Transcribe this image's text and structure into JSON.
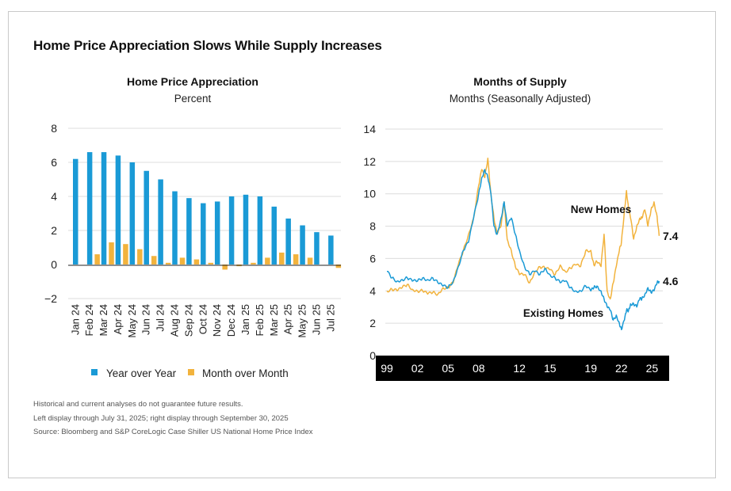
{
  "title": "Home Price Appreciation Slows While Supply Increases",
  "colors": {
    "yoy": "#1a9ad6",
    "mom": "#f2b33d",
    "existing": "#1a9ad6",
    "new": "#f2b33d",
    "axis_band": "#000000"
  },
  "chart_data": [
    {
      "type": "bar",
      "title": "Home Price Appreciation",
      "subtitle": "Percent",
      "xlabel": "",
      "ylabel": "",
      "ylim": [
        -2,
        8
      ],
      "yticks": [
        -2,
        0,
        2,
        4,
        6,
        8
      ],
      "ytick_labels": [
        "−2",
        "0",
        "2",
        "4",
        "6",
        "8"
      ],
      "categories": [
        "Jan 24",
        "Feb 24",
        "Mar 24",
        "Apr 24",
        "May 24",
        "Jun 24",
        "Jul 24",
        "Aug 24",
        "Sep 24",
        "Oct 24",
        "Nov 24",
        "Dec 24",
        "Jan 25",
        "Feb 25",
        "Mar 25",
        "Apr 25",
        "May 25",
        "Jun 25",
        "Jul 25"
      ],
      "series": [
        {
          "name": "Year over Year",
          "values": [
            6.2,
            6.6,
            6.6,
            6.4,
            6.0,
            5.5,
            5.0,
            4.3,
            3.9,
            3.6,
            3.7,
            4.0,
            4.1,
            4.0,
            3.4,
            2.7,
            2.3,
            1.9,
            1.7
          ]
        },
        {
          "name": "Month over Month",
          "values": [
            0.0,
            0.6,
            1.3,
            1.2,
            0.9,
            0.5,
            0.1,
            0.4,
            0.3,
            0.1,
            -0.3,
            -0.1,
            0.1,
            0.4,
            0.7,
            0.6,
            0.4,
            0.0,
            -0.2
          ]
        }
      ],
      "legend_position": "bottom"
    },
    {
      "type": "line",
      "title": "Months of Supply",
      "subtitle": "Months (Seasonally Adjusted)",
      "xlabel": "",
      "ylabel": "",
      "ylim": [
        0,
        14
      ],
      "yticks": [
        0,
        2,
        4,
        6,
        8,
        10,
        12,
        14
      ],
      "xlim": [
        1999,
        2025.75
      ],
      "xticks": [
        1999,
        2002,
        2005,
        2008,
        2012,
        2015,
        2019,
        2022,
        2025
      ],
      "xtick_labels": [
        "99",
        "02",
        "05",
        "08",
        "12",
        "15",
        "19",
        "22",
        "25"
      ],
      "series": [
        {
          "name": "New Homes",
          "end_label": "7.4",
          "x": [
            1999.0,
            1999.5,
            2000.0,
            2000.5,
            2001.0,
            2001.5,
            2002.0,
            2002.5,
            2003.0,
            2003.5,
            2004.0,
            2004.5,
            2005.0,
            2005.5,
            2006.0,
            2006.5,
            2007.0,
            2007.5,
            2008.0,
            2008.3,
            2008.6,
            2008.9,
            2009.2,
            2009.5,
            2009.8,
            2010.2,
            2010.5,
            2010.8,
            2011.2,
            2011.6,
            2012.0,
            2012.5,
            2013.0,
            2013.5,
            2014.0,
            2014.5,
            2015.0,
            2015.5,
            2016.0,
            2016.5,
            2017.0,
            2017.5,
            2018.0,
            2018.5,
            2019.0,
            2019.3,
            2019.6,
            2020.0,
            2020.3,
            2020.6,
            2020.9,
            2021.2,
            2021.5,
            2021.8,
            2022.0,
            2022.3,
            2022.5,
            2022.7,
            2022.9,
            2023.2,
            2023.5,
            2023.8,
            2024.0,
            2024.3,
            2024.6,
            2024.9,
            2025.2,
            2025.5,
            2025.7
          ],
          "values": [
            4.0,
            4.1,
            4.0,
            4.2,
            4.4,
            4.1,
            4.0,
            4.0,
            3.8,
            3.9,
            3.8,
            4.2,
            4.2,
            4.5,
            5.6,
            6.5,
            7.5,
            8.5,
            10.5,
            11.5,
            11.0,
            12.2,
            10.0,
            8.5,
            7.5,
            8.0,
            9.5,
            7.2,
            6.5,
            5.5,
            5.0,
            5.0,
            4.5,
            5.2,
            5.5,
            5.4,
            5.3,
            5.0,
            5.6,
            5.2,
            5.4,
            5.6,
            5.5,
            6.5,
            6.5,
            5.6,
            5.8,
            5.5,
            7.5,
            4.0,
            3.5,
            4.5,
            5.5,
            6.5,
            7.0,
            9.0,
            10.2,
            9.0,
            8.5,
            7.2,
            8.0,
            8.5,
            8.5,
            9.0,
            8.0,
            9.0,
            9.5,
            8.6,
            7.4
          ]
        },
        {
          "name": "Existing Homes",
          "end_label": "4.6",
          "x": [
            1999.0,
            1999.5,
            2000.0,
            2000.5,
            2001.0,
            2001.5,
            2002.0,
            2002.5,
            2003.0,
            2003.5,
            2004.0,
            2004.5,
            2005.0,
            2005.5,
            2006.0,
            2006.5,
            2007.0,
            2007.5,
            2008.0,
            2008.3,
            2008.6,
            2008.9,
            2009.2,
            2009.5,
            2009.8,
            2010.2,
            2010.5,
            2010.8,
            2011.2,
            2011.6,
            2012.0,
            2012.5,
            2013.0,
            2013.5,
            2014.0,
            2014.5,
            2015.0,
            2015.5,
            2016.0,
            2016.5,
            2017.0,
            2017.5,
            2018.0,
            2018.5,
            2019.0,
            2019.3,
            2019.6,
            2020.0,
            2020.3,
            2020.6,
            2020.9,
            2021.2,
            2021.5,
            2021.8,
            2022.0,
            2022.3,
            2022.5,
            2022.7,
            2022.9,
            2023.2,
            2023.5,
            2023.8,
            2024.0,
            2024.3,
            2024.6,
            2024.9,
            2025.2,
            2025.5,
            2025.7
          ],
          "values": [
            5.2,
            4.8,
            4.6,
            4.7,
            4.8,
            4.6,
            4.6,
            4.8,
            4.7,
            4.8,
            4.5,
            4.3,
            4.2,
            4.6,
            5.5,
            6.5,
            7.0,
            8.5,
            10.0,
            11.0,
            11.5,
            11.0,
            10.0,
            8.0,
            7.5,
            8.5,
            9.5,
            8.0,
            8.5,
            7.5,
            6.5,
            5.5,
            5.0,
            5.2,
            5.0,
            5.4,
            5.0,
            4.8,
            4.5,
            4.6,
            4.2,
            4.0,
            4.0,
            4.3,
            4.0,
            4.2,
            4.3,
            4.0,
            3.5,
            3.0,
            2.8,
            2.2,
            2.5,
            2.0,
            1.6,
            2.2,
            2.8,
            2.8,
            3.2,
            3.2,
            3.0,
            3.5,
            3.5,
            3.8,
            4.2,
            3.9,
            4.0,
            4.5,
            4.6
          ]
        }
      ],
      "annotations": [
        {
          "text": "New Homes",
          "x": 2020.0,
          "y": 8.8
        },
        {
          "text": "Existing Homes",
          "x": 2016.3,
          "y": 2.4
        }
      ]
    }
  ],
  "notes": [
    "Historical and current analyses do not guarantee future results.",
    "Left display through July 31, 2025; right display through September 30, 2025",
    "Source: Bloomberg and S&P CoreLogic Case Shiller US National Home Price Index"
  ]
}
